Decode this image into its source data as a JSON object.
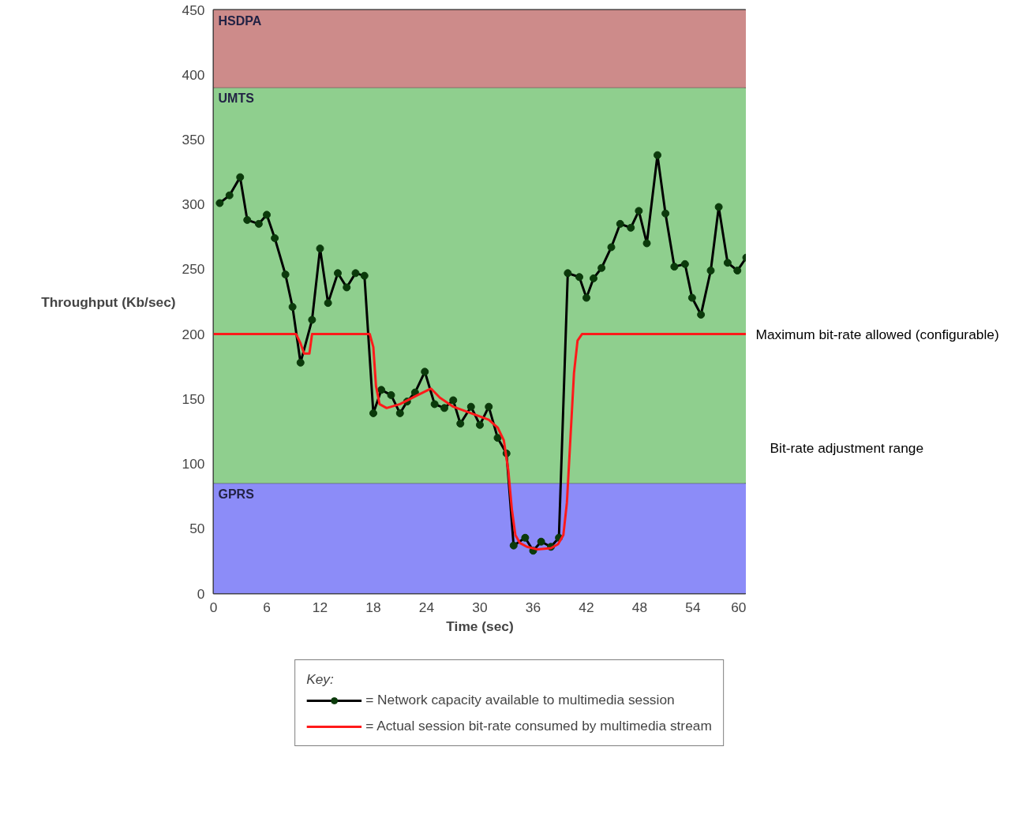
{
  "chart_data": {
    "type": "line",
    "xlabel": "Time (sec)",
    "ylabel": "Throughput (Kb/sec)",
    "xlim": [
      0,
      60
    ],
    "xticks": [
      0,
      6,
      12,
      18,
      24,
      30,
      36,
      42,
      48,
      54,
      60
    ],
    "ylim": [
      0,
      450
    ],
    "yticks": [
      0,
      50,
      100,
      150,
      200,
      250,
      300,
      350,
      400,
      450
    ],
    "grid": false,
    "legend": "bottom",
    "legend_title": "Key:",
    "series": [
      {
        "name": "= Network capacity available to multimedia session",
        "color": "#000000",
        "marker": "circle",
        "x": [
          0.7,
          1.8,
          3,
          3.8,
          5.1,
          6,
          6.9,
          8.1,
          8.9,
          9.8,
          11.1,
          12,
          12.9,
          14,
          15,
          16,
          17,
          18,
          18.9,
          20,
          21,
          21.8,
          22.7,
          23.8,
          24.9,
          26,
          27,
          27.8,
          29,
          30,
          31,
          32,
          33,
          33.8,
          35.1,
          36,
          36.9,
          38,
          38.9,
          39.9,
          41.2,
          42,
          42.8,
          43.7,
          44.8,
          45.8,
          47,
          47.9,
          48.8,
          50,
          50.9,
          51.9,
          53.1,
          53.9,
          54.9,
          56,
          56.9,
          57.9,
          59,
          60
        ],
        "values": [
          301,
          307,
          321,
          288,
          285,
          292,
          274,
          246,
          221,
          178,
          211,
          266,
          224,
          247,
          236,
          247,
          245,
          139,
          157,
          153,
          139,
          148,
          155,
          171,
          146,
          143,
          149,
          131,
          144,
          130,
          144,
          120,
          108,
          37,
          43,
          33,
          40,
          36,
          43,
          247,
          244,
          228,
          243,
          251,
          267,
          285,
          282,
          295,
          270,
          338,
          293,
          252,
          254,
          228,
          215,
          249,
          298,
          255,
          249,
          259
        ]
      },
      {
        "name": "= Actual session bit-rate consumed by multimedia stream",
        "color": "#ff1a1a",
        "marker": "none",
        "x": [
          0,
          9.3,
          9.8,
          10.2,
          10.8,
          11.1,
          17.6,
          18,
          18.3,
          18.7,
          19.5,
          21,
          23,
          24.5,
          25.5,
          27,
          29,
          31,
          32,
          32.7,
          33.2,
          33.6,
          34,
          34.5,
          35.3,
          36.5,
          38,
          38.8,
          39.4,
          39.8,
          40.2,
          40.6,
          41,
          41.5,
          60
        ],
        "values": [
          200,
          200,
          193,
          185,
          185,
          200,
          200,
          190,
          160,
          146,
          143,
          146,
          153,
          158,
          151,
          144,
          139,
          134,
          128,
          118,
          95,
          65,
          45,
          39,
          36,
          34,
          35,
          38,
          45,
          70,
          120,
          170,
          195,
          200,
          200
        ]
      }
    ],
    "bands": [
      {
        "axis": "y",
        "from": 0,
        "to": 85,
        "label": "GPRS",
        "color": "#8c8cf8"
      },
      {
        "axis": "y",
        "from": 85,
        "to": 390,
        "label": "UMTS",
        "color": "#8fcf8e"
      },
      {
        "axis": "y",
        "from": 390,
        "to": 450,
        "label": "HSDPA",
        "color": "#cd8b8a"
      }
    ],
    "annotations": [
      {
        "text": "Maximum bit-rate allowed (configurable)",
        "x": 60,
        "y": 200
      },
      "Bit-rate adjustment range"
    ]
  }
}
